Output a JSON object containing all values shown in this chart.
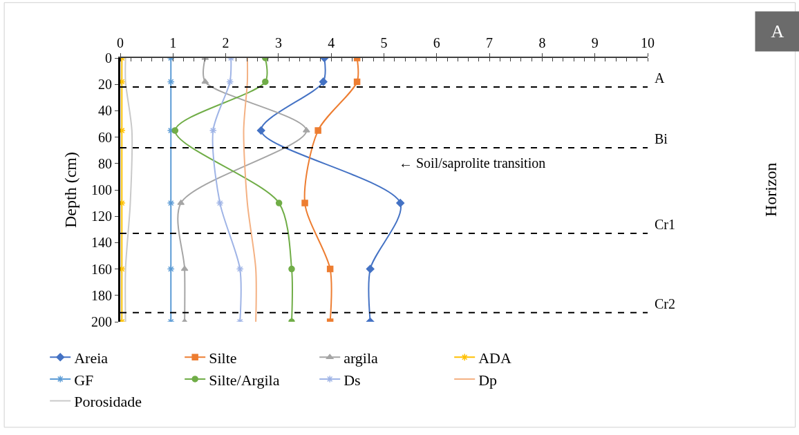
{
  "chart_data": {
    "type": "line",
    "orientation": "horizontal",
    "ylabel": "Depth (cm)",
    "x": [
      0,
      18,
      55,
      110,
      160,
      200
    ],
    "series": [
      {
        "name": "Areia",
        "color": "#4472c4",
        "marker": "diamond",
        "values": [
          3.87,
          3.85,
          2.67,
          5.31,
          4.74,
          4.74
        ]
      },
      {
        "name": "Silte",
        "color": "#ed7d31",
        "marker": "square",
        "values": [
          4.49,
          4.49,
          3.75,
          3.5,
          3.98,
          3.98
        ]
      },
      {
        "name": "argila",
        "color": "#a5a5a5",
        "marker": "triangle",
        "values": [
          1.61,
          1.61,
          3.53,
          1.15,
          1.22,
          1.22
        ]
      },
      {
        "name": "ADA",
        "color": "#ffc000",
        "marker": "cross",
        "values": [
          0.03,
          0.03,
          0.03,
          0.03,
          0.03,
          0.03
        ]
      },
      {
        "name": "GF",
        "color": "#5b9bd5",
        "marker": "cross",
        "values": [
          0.96,
          0.96,
          0.96,
          0.96,
          0.96,
          0.96
        ]
      },
      {
        "name": "Silte/Argila",
        "color": "#70ad47",
        "marker": "circle",
        "values": [
          2.75,
          2.75,
          1.04,
          3.01,
          3.25,
          3.25
        ]
      },
      {
        "name": "Ds",
        "color": "#9fb4e6",
        "marker": "cross",
        "values": [
          2.1,
          2.08,
          1.76,
          1.89,
          2.27,
          2.27
        ]
      },
      {
        "name": "Dp",
        "color": "#f4b183",
        "marker": "none",
        "values": [
          2.41,
          2.41,
          2.34,
          2.41,
          2.57,
          2.57
        ]
      },
      {
        "name": "Porosidade",
        "color": "#c9c9c9",
        "marker": "none",
        "values": [
          0.1,
          0.1,
          0.22,
          0.19,
          0.1,
          0.1
        ]
      }
    ],
    "xlim": [
      0,
      10
    ],
    "xticks": [
      0,
      1,
      2,
      3,
      4,
      5,
      6,
      7,
      8,
      9,
      10
    ],
    "ylim": [
      200,
      0
    ],
    "yticks": [
      0,
      20,
      40,
      60,
      80,
      100,
      120,
      140,
      160,
      180,
      200
    ],
    "ref_lines": [
      {
        "axis": "y",
        "value": 22,
        "label": "A",
        "color": "#000000",
        "line_style": "dashed"
      },
      {
        "axis": "y",
        "value": 68,
        "label": "Bi",
        "color": "#000000",
        "line_style": "dashed"
      },
      {
        "axis": "y",
        "value": 133,
        "label": "Cr1",
        "color": "#000000",
        "line_style": "dashed"
      },
      {
        "axis": "y",
        "value": 193,
        "label": "Cr2",
        "color": "#000000",
        "line_style": "dashed"
      }
    ],
    "annotations": [
      "← Soil/saprolite transition",
      "A",
      "Horizon"
    ],
    "legend": "bottom",
    "line_style": "solid"
  }
}
